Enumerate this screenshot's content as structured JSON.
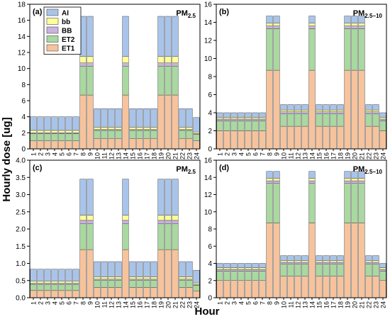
{
  "figure": {
    "ylabel": "Hourly dose [ug]",
    "xlabel": "Hour",
    "legend_position": "top-left of panel (a)",
    "colors": {
      "AI": "#a9c4eb",
      "bb": "#ffff99",
      "BB": "#c9b3e0",
      "ET2": "#a9d8a0",
      "ET1": "#f7c39c"
    }
  },
  "legend": {
    "items": [
      "AI",
      "bb",
      "BB",
      "ET2",
      "ET1"
    ]
  },
  "chart_data": [
    {
      "panel": "(a)",
      "pollutant_main": "PM",
      "pollutant_sub": "2.5",
      "type": "bar",
      "stacked": true,
      "categories": [
        "1",
        "2",
        "3",
        "4",
        "5",
        "6",
        "7",
        "8",
        "9",
        "10",
        "11",
        "12",
        "13",
        "14",
        "15",
        "16",
        "17",
        "18",
        "19",
        "20",
        "21",
        "22",
        "23",
        "24"
      ],
      "ylim": [
        0,
        18
      ],
      "yticks": [
        0,
        2,
        4,
        6,
        8,
        10,
        12,
        14,
        16,
        18
      ],
      "series": [
        {
          "name": "ET1",
          "values": [
            1.0,
            1.0,
            1.0,
            1.0,
            1.0,
            1.0,
            1.0,
            6.7,
            6.7,
            1.3,
            1.3,
            1.3,
            1.3,
            6.7,
            1.3,
            1.3,
            1.3,
            1.3,
            6.7,
            6.7,
            6.7,
            1.3,
            1.3,
            1.0
          ]
        },
        {
          "name": "ET2",
          "values": [
            0.9,
            0.9,
            0.9,
            0.9,
            0.9,
            0.9,
            0.9,
            3.6,
            3.6,
            1.0,
            1.0,
            1.0,
            1.0,
            3.6,
            1.0,
            1.0,
            1.0,
            1.0,
            3.6,
            3.6,
            3.6,
            1.0,
            1.0,
            0.8
          ]
        },
        {
          "name": "BB",
          "values": [
            0.1,
            0.1,
            0.1,
            0.1,
            0.1,
            0.1,
            0.1,
            0.4,
            0.4,
            0.1,
            0.1,
            0.1,
            0.1,
            0.4,
            0.1,
            0.1,
            0.1,
            0.1,
            0.4,
            0.4,
            0.4,
            0.1,
            0.1,
            0.1
          ]
        },
        {
          "name": "bb",
          "values": [
            0.3,
            0.3,
            0.3,
            0.3,
            0.3,
            0.3,
            0.3,
            0.8,
            0.8,
            0.3,
            0.3,
            0.3,
            0.3,
            0.8,
            0.3,
            0.3,
            0.3,
            0.3,
            0.8,
            0.8,
            0.8,
            0.3,
            0.3,
            0.2
          ]
        },
        {
          "name": "AI",
          "values": [
            1.7,
            1.7,
            1.7,
            1.7,
            1.7,
            1.7,
            1.7,
            5.0,
            5.0,
            2.3,
            2.3,
            2.3,
            2.3,
            5.0,
            2.3,
            2.3,
            2.3,
            2.3,
            5.0,
            5.0,
            5.0,
            2.3,
            2.3,
            1.8
          ]
        }
      ]
    },
    {
      "panel": "(b)",
      "pollutant_main": "PM",
      "pollutant_sub": "2.5−10",
      "type": "bar",
      "stacked": true,
      "categories": [
        "1",
        "2",
        "3",
        "4",
        "5",
        "6",
        "7",
        "8",
        "9",
        "10",
        "11",
        "12",
        "13",
        "14",
        "15",
        "16",
        "17",
        "18",
        "19",
        "20",
        "21",
        "22",
        "23",
        "24"
      ],
      "ylim": [
        0,
        16
      ],
      "yticks": [
        0,
        2,
        4,
        6,
        8,
        10,
        12,
        14,
        16
      ],
      "series": [
        {
          "name": "ET1",
          "values": [
            2.0,
            2.0,
            2.0,
            2.0,
            2.0,
            2.0,
            2.0,
            8.7,
            8.7,
            2.5,
            2.5,
            2.5,
            2.5,
            8.7,
            2.5,
            2.5,
            2.5,
            2.5,
            8.7,
            8.7,
            8.7,
            2.5,
            2.5,
            2.0
          ]
        },
        {
          "name": "ET2",
          "values": [
            1.1,
            1.1,
            1.1,
            1.1,
            1.1,
            1.1,
            1.1,
            4.6,
            4.6,
            1.4,
            1.4,
            1.4,
            1.4,
            4.6,
            1.4,
            1.4,
            1.4,
            1.4,
            4.6,
            4.6,
            4.6,
            1.4,
            1.4,
            1.1
          ]
        },
        {
          "name": "BB",
          "values": [
            0.2,
            0.2,
            0.2,
            0.2,
            0.2,
            0.2,
            0.2,
            0.3,
            0.3,
            0.2,
            0.2,
            0.2,
            0.2,
            0.3,
            0.2,
            0.2,
            0.2,
            0.2,
            0.3,
            0.3,
            0.3,
            0.2,
            0.2,
            0.2
          ]
        },
        {
          "name": "bb",
          "values": [
            0.2,
            0.2,
            0.2,
            0.2,
            0.2,
            0.2,
            0.2,
            0.3,
            0.3,
            0.2,
            0.2,
            0.2,
            0.2,
            0.3,
            0.2,
            0.2,
            0.2,
            0.2,
            0.3,
            0.3,
            0.3,
            0.2,
            0.2,
            0.2
          ]
        },
        {
          "name": "AI",
          "values": [
            0.5,
            0.5,
            0.5,
            0.5,
            0.5,
            0.5,
            0.5,
            0.8,
            0.8,
            0.6,
            0.6,
            0.6,
            0.6,
            0.8,
            0.6,
            0.6,
            0.6,
            0.6,
            0.8,
            0.8,
            0.8,
            0.6,
            0.6,
            0.5
          ]
        }
      ]
    },
    {
      "panel": "(c)",
      "pollutant_main": "PM",
      "pollutant_sub": "2.5",
      "type": "bar",
      "stacked": true,
      "categories": [
        "1",
        "2",
        "3",
        "4",
        "5",
        "6",
        "7",
        "8",
        "9",
        "10",
        "11",
        "12",
        "13",
        "14",
        "15",
        "16",
        "17",
        "18",
        "19",
        "20",
        "21",
        "22",
        "23",
        "24"
      ],
      "ylim": [
        0,
        4.0
      ],
      "yticks": [
        0.0,
        0.5,
        1.0,
        1.5,
        2.0,
        2.5,
        3.0,
        3.5,
        4.0
      ],
      "series": [
        {
          "name": "ET1",
          "values": [
            0.21,
            0.21,
            0.21,
            0.21,
            0.21,
            0.21,
            0.21,
            1.4,
            1.4,
            0.3,
            0.3,
            0.3,
            0.3,
            1.4,
            0.3,
            0.3,
            0.3,
            0.3,
            1.4,
            1.4,
            1.4,
            0.3,
            0.3,
            0.2
          ]
        },
        {
          "name": "ET2",
          "values": [
            0.18,
            0.18,
            0.18,
            0.18,
            0.18,
            0.18,
            0.18,
            0.75,
            0.75,
            0.21,
            0.21,
            0.21,
            0.21,
            0.75,
            0.21,
            0.21,
            0.21,
            0.21,
            0.75,
            0.75,
            0.75,
            0.21,
            0.21,
            0.16
          ]
        },
        {
          "name": "BB",
          "values": [
            0.03,
            0.03,
            0.03,
            0.03,
            0.03,
            0.03,
            0.03,
            0.1,
            0.1,
            0.03,
            0.03,
            0.03,
            0.03,
            0.1,
            0.03,
            0.03,
            0.03,
            0.03,
            0.1,
            0.1,
            0.1,
            0.03,
            0.03,
            0.02
          ]
        },
        {
          "name": "bb",
          "values": [
            0.06,
            0.06,
            0.06,
            0.06,
            0.06,
            0.06,
            0.06,
            0.15,
            0.15,
            0.07,
            0.07,
            0.07,
            0.07,
            0.15,
            0.07,
            0.07,
            0.07,
            0.07,
            0.15,
            0.15,
            0.15,
            0.07,
            0.07,
            0.05
          ]
        },
        {
          "name": "AI",
          "values": [
            0.35,
            0.35,
            0.35,
            0.35,
            0.35,
            0.35,
            0.35,
            1.05,
            1.05,
            0.44,
            0.44,
            0.44,
            0.44,
            1.05,
            0.44,
            0.44,
            0.44,
            0.44,
            1.05,
            1.05,
            1.05,
            0.44,
            0.44,
            0.37
          ]
        }
      ]
    },
    {
      "panel": "(d)",
      "pollutant_main": "PM",
      "pollutant_sub": "2.5−10",
      "type": "bar",
      "stacked": true,
      "categories": [
        "1",
        "2",
        "3",
        "4",
        "5",
        "6",
        "7",
        "8",
        "9",
        "10",
        "11",
        "12",
        "13",
        "14",
        "15",
        "16",
        "17",
        "18",
        "19",
        "20",
        "21",
        "22",
        "23",
        "24"
      ],
      "ylim": [
        0,
        16
      ],
      "yticks": [
        0,
        2,
        4,
        6,
        8,
        10,
        12,
        14,
        16
      ],
      "series": [
        {
          "name": "ET1",
          "values": [
            2.0,
            2.0,
            2.0,
            2.0,
            2.0,
            2.0,
            2.0,
            8.7,
            8.7,
            2.5,
            2.5,
            2.5,
            2.5,
            8.7,
            2.5,
            2.5,
            2.5,
            2.5,
            8.7,
            8.7,
            8.7,
            2.5,
            2.5,
            2.0
          ]
        },
        {
          "name": "ET2",
          "values": [
            1.1,
            1.1,
            1.1,
            1.1,
            1.1,
            1.1,
            1.1,
            4.6,
            4.6,
            1.4,
            1.4,
            1.4,
            1.4,
            4.6,
            1.4,
            1.4,
            1.4,
            1.4,
            4.6,
            4.6,
            4.6,
            1.4,
            1.4,
            1.1
          ]
        },
        {
          "name": "BB",
          "values": [
            0.2,
            0.2,
            0.2,
            0.2,
            0.2,
            0.2,
            0.2,
            0.3,
            0.3,
            0.2,
            0.2,
            0.2,
            0.2,
            0.3,
            0.2,
            0.2,
            0.2,
            0.2,
            0.3,
            0.3,
            0.3,
            0.2,
            0.2,
            0.2
          ]
        },
        {
          "name": "bb",
          "values": [
            0.2,
            0.2,
            0.2,
            0.2,
            0.2,
            0.2,
            0.2,
            0.3,
            0.3,
            0.2,
            0.2,
            0.2,
            0.2,
            0.3,
            0.2,
            0.2,
            0.2,
            0.2,
            0.3,
            0.3,
            0.3,
            0.2,
            0.2,
            0.2
          ]
        },
        {
          "name": "AI",
          "values": [
            0.5,
            0.5,
            0.5,
            0.5,
            0.5,
            0.5,
            0.5,
            0.8,
            0.8,
            0.6,
            0.6,
            0.6,
            0.6,
            0.8,
            0.6,
            0.6,
            0.6,
            0.6,
            0.8,
            0.8,
            0.8,
            0.6,
            0.6,
            0.5
          ]
        }
      ]
    }
  ]
}
